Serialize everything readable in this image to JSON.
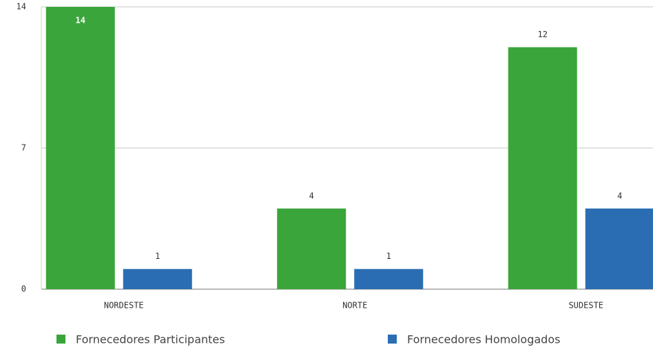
{
  "chart_data": {
    "type": "bar",
    "categories": [
      "NORDESTE",
      "NORTE",
      "SUDESTE"
    ],
    "series": [
      {
        "name": "Fornecedores Participantes",
        "color": "#3aa53a",
        "values": [
          14,
          4,
          12
        ]
      },
      {
        "name": "Fornecedores Homologados",
        "color": "#2a6db3",
        "values": [
          1,
          1,
          4
        ]
      }
    ],
    "ylim": [
      0,
      14
    ],
    "yticks": [
      0,
      7,
      14
    ],
    "grid": true
  }
}
